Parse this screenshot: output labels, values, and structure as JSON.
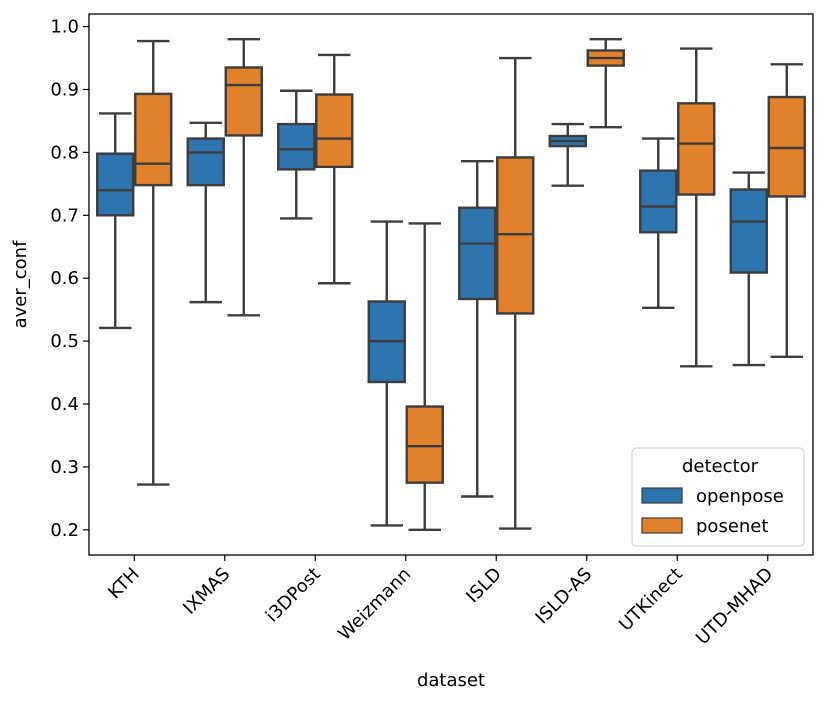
{
  "chart_data": {
    "type": "boxplot",
    "xlabel": "dataset",
    "ylabel": "aver_conf",
    "ylim": [
      0.16,
      1.02
    ],
    "yticks": [
      0.2,
      0.3,
      0.4,
      0.5,
      0.6,
      0.7,
      0.8,
      0.9,
      1.0
    ],
    "ytick_labels": [
      "0.2",
      "0.3",
      "0.4",
      "0.5",
      "0.6",
      "0.7",
      "0.8",
      "0.9",
      "1.0"
    ],
    "categories": [
      "KTH",
      "IXMAS",
      "i3DPost",
      "Weizmann",
      "ISLD",
      "ISLD-AS",
      "UTKinect",
      "UTD-MHAD"
    ],
    "legend": {
      "title": "detector",
      "placement": "lower-right"
    },
    "series": [
      {
        "name": "openpose",
        "color": "#2e75b0",
        "boxes": [
          {
            "whislo": 0.521,
            "q1": 0.7,
            "med": 0.74,
            "q3": 0.798,
            "whishi": 0.862
          },
          {
            "whislo": 0.562,
            "q1": 0.748,
            "med": 0.8,
            "q3": 0.822,
            "whishi": 0.847
          },
          {
            "whislo": 0.695,
            "q1": 0.773,
            "med": 0.805,
            "q3": 0.845,
            "whishi": 0.898
          },
          {
            "whislo": 0.207,
            "q1": 0.435,
            "med": 0.5,
            "q3": 0.563,
            "whishi": 0.69
          },
          {
            "whislo": 0.253,
            "q1": 0.567,
            "med": 0.655,
            "q3": 0.712,
            "whishi": 0.786
          },
          {
            "whislo": 0.747,
            "q1": 0.81,
            "med": 0.818,
            "q3": 0.826,
            "whishi": 0.845
          },
          {
            "whislo": 0.553,
            "q1": 0.673,
            "med": 0.714,
            "q3": 0.771,
            "whishi": 0.822
          },
          {
            "whislo": 0.462,
            "q1": 0.609,
            "med": 0.69,
            "q3": 0.741,
            "whishi": 0.768
          }
        ]
      },
      {
        "name": "posenet",
        "color": "#e1812c",
        "boxes": [
          {
            "whislo": 0.272,
            "q1": 0.748,
            "med": 0.782,
            "q3": 0.893,
            "whishi": 0.977
          },
          {
            "whislo": 0.541,
            "q1": 0.827,
            "med": 0.907,
            "q3": 0.935,
            "whishi": 0.98
          },
          {
            "whislo": 0.592,
            "q1": 0.777,
            "med": 0.822,
            "q3": 0.892,
            "whishi": 0.955
          },
          {
            "whislo": 0.2,
            "q1": 0.275,
            "med": 0.333,
            "q3": 0.396,
            "whishi": 0.687
          },
          {
            "whislo": 0.202,
            "q1": 0.544,
            "med": 0.67,
            "q3": 0.792,
            "whishi": 0.95
          },
          {
            "whislo": 0.84,
            "q1": 0.938,
            "med": 0.95,
            "q3": 0.962,
            "whishi": 0.98
          },
          {
            "whislo": 0.46,
            "q1": 0.733,
            "med": 0.814,
            "q3": 0.878,
            "whishi": 0.965
          },
          {
            "whislo": 0.475,
            "q1": 0.73,
            "med": 0.807,
            "q3": 0.888,
            "whishi": 0.94
          }
        ]
      }
    ]
  }
}
